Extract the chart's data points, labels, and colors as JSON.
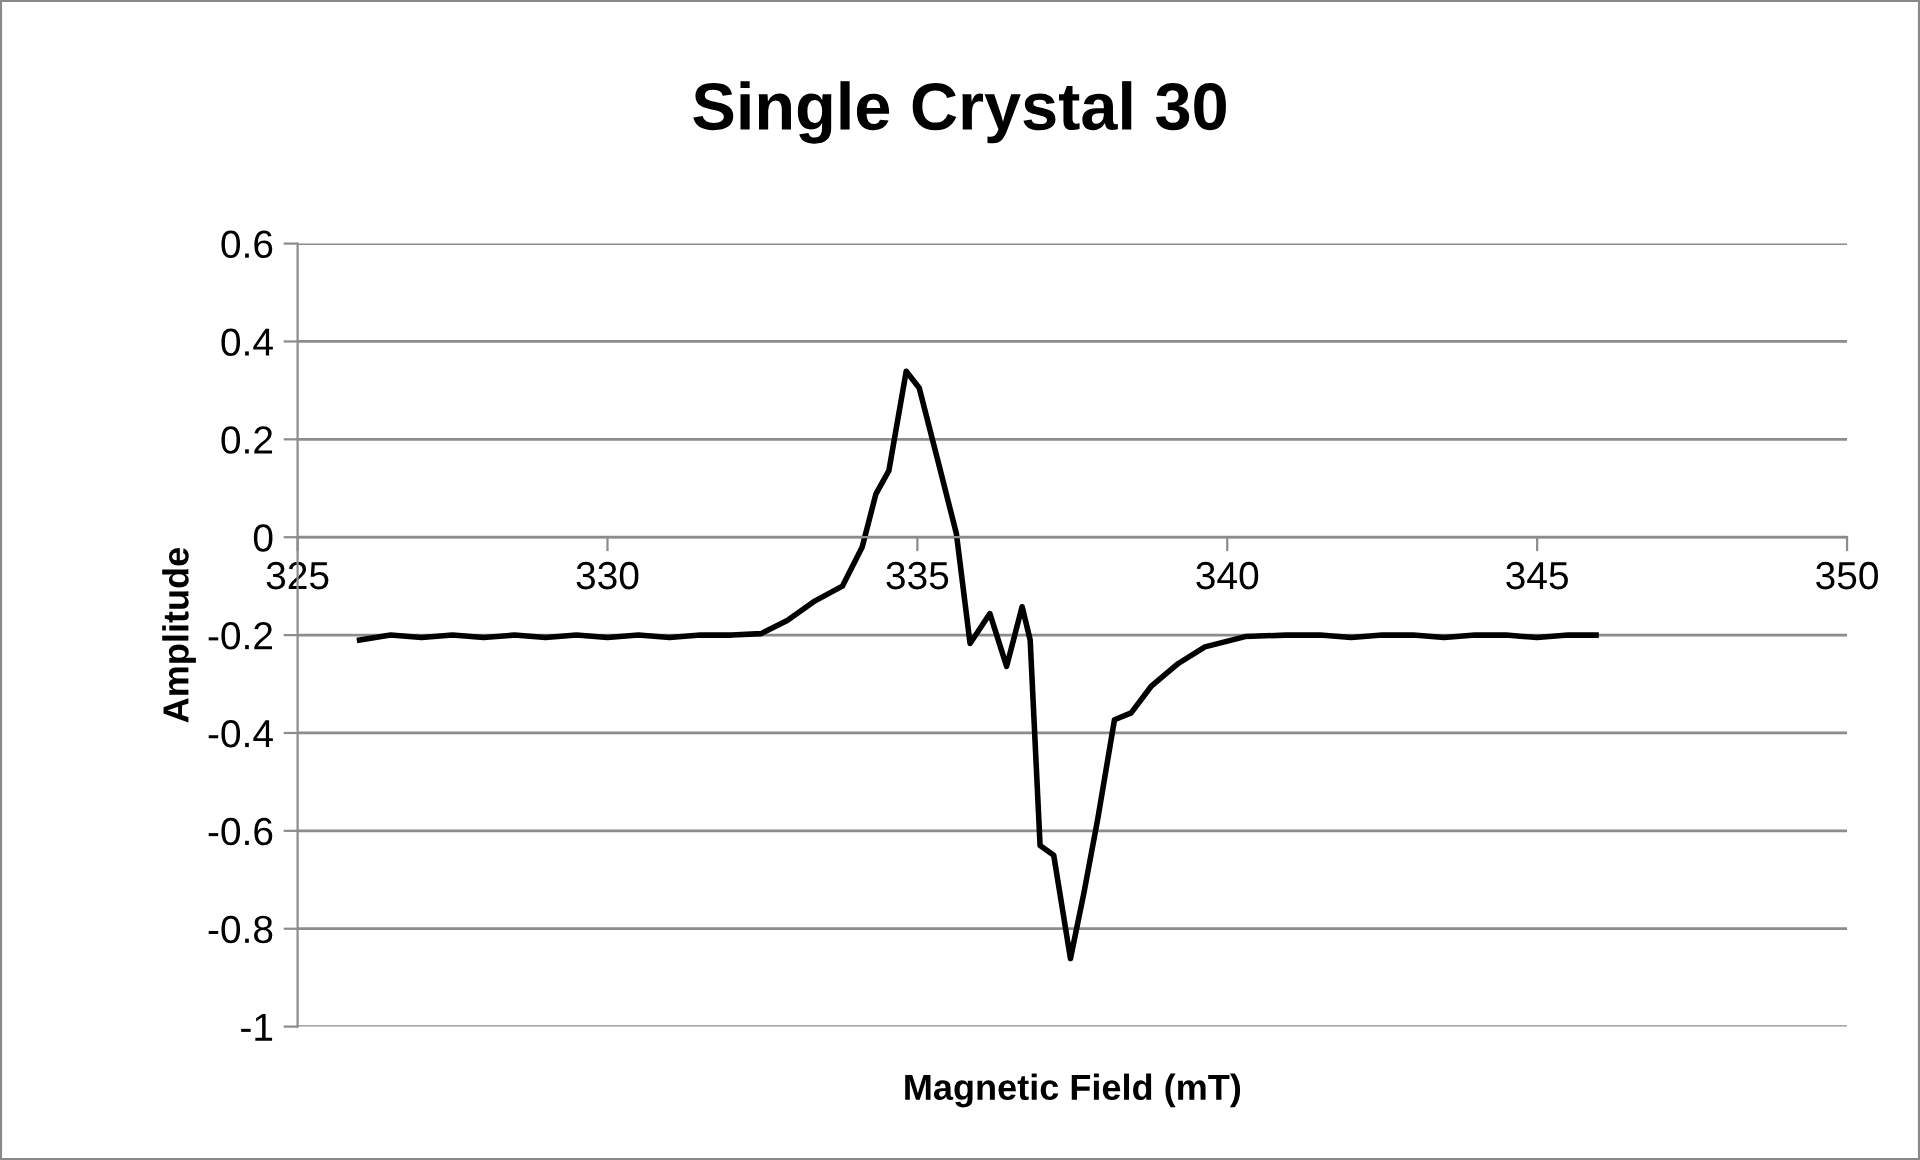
{
  "chart_data": {
    "type": "line",
    "title": "Single Crystal 30",
    "xlabel": "Magnetic Field (mT)",
    "ylabel": "Amplitude",
    "x": [
      326.0,
      326.5,
      327,
      327.5,
      328,
      328.5,
      329,
      329.5,
      330,
      330.5,
      331,
      331.5,
      332,
      332.48,
      332.9,
      333.35,
      333.79,
      334.11,
      334.33,
      334.54,
      334.82,
      335.03,
      335.36,
      335.63,
      335.85,
      336.17,
      336.44,
      336.69,
      336.82,
      336.98,
      337.2,
      337.47,
      337.69,
      337.91,
      338.18,
      338.45,
      338.77,
      339.21,
      339.64,
      340.29,
      340.94,
      341.5,
      342,
      342.5,
      343,
      343.5,
      344,
      344.5,
      345,
      345.5,
      345.95
    ],
    "series": [
      {
        "color": "#000000",
        "values": [
          -0.21,
          -0.2,
          -0.205,
          -0.2,
          -0.205,
          -0.2,
          -0.205,
          -0.2,
          -0.205,
          -0.2,
          -0.205,
          -0.2,
          -0.2,
          -0.197,
          -0.17,
          -0.13,
          -0.1,
          -0.02,
          0.088,
          0.136,
          0.339,
          0.305,
          0.142,
          0.007,
          -0.217,
          -0.156,
          -0.264,
          -0.142,
          -0.21,
          -0.63,
          -0.65,
          -0.861,
          -0.725,
          -0.576,
          -0.373,
          -0.359,
          -0.305,
          -0.258,
          -0.224,
          -0.203,
          -0.2,
          -0.2,
          -0.205,
          -0.2,
          -0.2,
          -0.205,
          -0.2,
          -0.2,
          -0.205,
          -0.2,
          -0.2
        ]
      }
    ],
    "xlim": [
      325,
      350
    ],
    "xticks": [
      325,
      330,
      335,
      340,
      345,
      350
    ],
    "ylim": [
      -1,
      0.6
    ],
    "yticks": [
      -1,
      -0.8,
      -0.6,
      -0.4,
      -0.2,
      0,
      0.2,
      0.4,
      0.6
    ],
    "grid": "y",
    "marker": "none",
    "line_style": "solid"
  }
}
